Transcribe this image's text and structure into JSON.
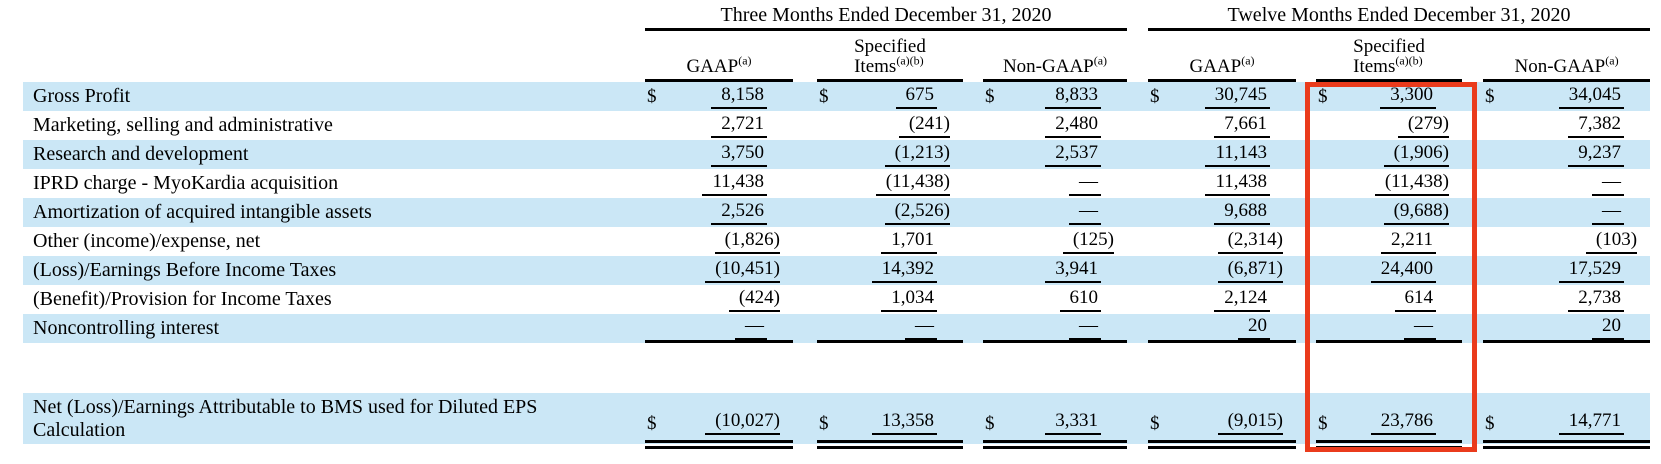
{
  "colors": {
    "stripe": "#cbe7f6",
    "highlight": "#ea3b1c",
    "rule": "#000000",
    "text": "#000000"
  },
  "table": {
    "currency_symbol": "$",
    "period_groups": [
      {
        "title": "Three Months Ended December 31, 2020"
      },
      {
        "title": "Twelve Months Ended December 31, 2020"
      }
    ],
    "sub_headers": [
      {
        "lines": [
          "GAAP"
        ],
        "sup": "(a)"
      },
      {
        "lines": [
          "Specified",
          "Items"
        ],
        "sup": "(a)(b)"
      },
      {
        "lines": [
          "Non-GAAP"
        ],
        "sup": "(a)"
      }
    ],
    "rows": [
      {
        "label": "Gross Profit",
        "dollar": true,
        "shaded": true,
        "values": [
          "8,158",
          "675",
          "8,833",
          "30,745",
          "3,300",
          "34,045"
        ]
      },
      {
        "label": "Marketing, selling and administrative",
        "dollar": false,
        "shaded": false,
        "values": [
          "2,721",
          "(241)",
          "2,480",
          "7,661",
          "(279)",
          "7,382"
        ]
      },
      {
        "label": "Research and development",
        "dollar": false,
        "shaded": true,
        "values": [
          "3,750",
          "(1,213)",
          "2,537",
          "11,143",
          "(1,906)",
          "9,237"
        ]
      },
      {
        "label": "IPRD charge - MyoKardia acquisition",
        "dollar": false,
        "shaded": false,
        "values": [
          "11,438",
          "(11,438)",
          "—",
          "11,438",
          "(11,438)",
          "—"
        ]
      },
      {
        "label": "Amortization of acquired intangible assets",
        "dollar": false,
        "shaded": true,
        "values": [
          "2,526",
          "(2,526)",
          "—",
          "9,688",
          "(9,688)",
          "—"
        ]
      },
      {
        "label": "Other (income)/expense, net",
        "dollar": false,
        "shaded": false,
        "values": [
          "(1,826)",
          "1,701",
          "(125)",
          "(2,314)",
          "2,211",
          "(103)"
        ]
      },
      {
        "label": "(Loss)/Earnings Before Income Taxes",
        "dollar": false,
        "shaded": true,
        "values": [
          "(10,451)",
          "14,392",
          "3,941",
          "(6,871)",
          "24,400",
          "17,529"
        ]
      },
      {
        "label": "(Benefit)/Provision for Income Taxes",
        "dollar": false,
        "shaded": false,
        "values": [
          "(424)",
          "1,034",
          "610",
          "2,124",
          "614",
          "2,738"
        ]
      },
      {
        "label": "Noncontrolling interest",
        "dollar": false,
        "shaded": true,
        "rule_below": true,
        "values": [
          "—",
          "—",
          "—",
          "20",
          "—",
          "20"
        ]
      }
    ],
    "total_row": {
      "label": "Net (Loss)/Earnings Attributable to BMS used for Diluted EPS Calculation",
      "dollar": true,
      "shaded": true,
      "values": [
        "(10,027)",
        "13,358",
        "3,331",
        "(9,015)",
        "23,786",
        "14,771"
      ]
    }
  }
}
